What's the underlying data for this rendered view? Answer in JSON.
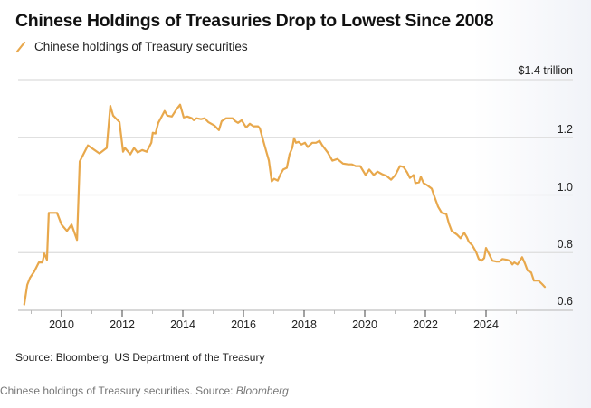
{
  "header": {
    "title": "Chinese Holdings of Treasuries Drop to Lowest Since 2008",
    "legend_label": "Chinese holdings of Treasury securities",
    "unit_label": "$1.4 trillion"
  },
  "footer": {
    "source": "Source: Bloomberg, US Department of the Treasury",
    "caption_prefix": "Chinese holdings of Treasury securities. Source: ",
    "caption_source": "Bloomberg"
  },
  "colors": {
    "line": "#e8a84c",
    "grid": "#dcdcdc",
    "axis": "#cccccc"
  },
  "chart_data": {
    "type": "line",
    "title": "Chinese Holdings of Treasuries Drop to Lowest Since 2008",
    "xlabel": "",
    "ylabel": "$ trillion",
    "ylim": [
      0.6,
      1.4
    ],
    "xlim": [
      2008.6,
      2026.9
    ],
    "yticks": [
      0.6,
      0.8,
      1.0,
      1.2,
      1.4
    ],
    "ytick_labels": [
      "0.6",
      "0.8",
      "1.0",
      "1.2",
      "$1.4 trillion"
    ],
    "xticks": [
      2010,
      2012,
      2014,
      2016,
      2018,
      2020,
      2022,
      2024
    ],
    "xtick_labels": [
      "2010",
      "2012",
      "2014",
      "2016",
      "2018",
      "2020",
      "2022",
      "2024"
    ],
    "minor_xticks": [
      2009,
      2011,
      2013,
      2015,
      2017,
      2019,
      2021,
      2023,
      2025
    ],
    "grid": true,
    "legend": "top-left",
    "series": [
      {
        "name": "Chinese holdings of Treasury securities",
        "x": [
          2008.77,
          2008.87,
          2008.96,
          2009.1,
          2009.25,
          2009.37,
          2009.43,
          2009.52,
          2009.58,
          2009.85,
          2010.0,
          2010.18,
          2010.33,
          2010.51,
          2010.6,
          2010.87,
          2011.25,
          2011.49,
          2011.61,
          2011.7,
          2011.91,
          2012.03,
          2012.09,
          2012.27,
          2012.39,
          2012.51,
          2012.66,
          2012.81,
          2012.96,
          2013.01,
          2013.1,
          2013.19,
          2013.4,
          2013.49,
          2013.64,
          2013.79,
          2013.91,
          2014.03,
          2014.15,
          2014.3,
          2014.36,
          2014.45,
          2014.6,
          2014.72,
          2014.84,
          2015.04,
          2015.19,
          2015.28,
          2015.43,
          2015.64,
          2015.73,
          2015.82,
          2015.94,
          2016.09,
          2016.21,
          2016.33,
          2016.48,
          2016.54,
          2016.72,
          2016.84,
          2016.93,
          2017.01,
          2017.13,
          2017.22,
          2017.31,
          2017.43,
          2017.52,
          2017.61,
          2017.67,
          2017.73,
          2017.82,
          2017.91,
          2018.03,
          2018.12,
          2018.27,
          2018.39,
          2018.51,
          2018.6,
          2018.78,
          2018.93,
          2019.1,
          2019.28,
          2019.46,
          2019.58,
          2019.7,
          2019.85,
          2020.03,
          2020.15,
          2020.3,
          2020.42,
          2020.57,
          2020.72,
          2020.87,
          2021.01,
          2021.16,
          2021.28,
          2021.4,
          2021.49,
          2021.61,
          2021.67,
          2021.79,
          2021.85,
          2021.94,
          2022.06,
          2022.21,
          2022.3,
          2022.42,
          2022.54,
          2022.69,
          2022.78,
          2022.87,
          2023.04,
          2023.16,
          2023.28,
          2023.37,
          2023.43,
          2023.55,
          2023.67,
          2023.76,
          2023.85,
          2023.94,
          2024.0,
          2024.12,
          2024.21,
          2024.33,
          2024.45,
          2024.54,
          2024.69,
          2024.78,
          2024.87,
          2024.93,
          2025.04,
          2025.19,
          2025.28,
          2025.37,
          2025.49,
          2025.58,
          2025.73,
          2025.85,
          2025.94
        ],
        "values": [
          0.62,
          0.688,
          0.713,
          0.734,
          0.766,
          0.766,
          0.797,
          0.775,
          0.938,
          0.938,
          0.897,
          0.875,
          0.897,
          0.844,
          1.116,
          1.172,
          1.144,
          1.163,
          1.309,
          1.275,
          1.253,
          1.15,
          1.163,
          1.141,
          1.163,
          1.147,
          1.156,
          1.15,
          1.181,
          1.216,
          1.213,
          1.25,
          1.291,
          1.275,
          1.272,
          1.297,
          1.313,
          1.269,
          1.272,
          1.266,
          1.259,
          1.266,
          1.263,
          1.266,
          1.253,
          1.241,
          1.225,
          1.256,
          1.266,
          1.266,
          1.256,
          1.25,
          1.259,
          1.234,
          1.247,
          1.238,
          1.238,
          1.231,
          1.163,
          1.119,
          1.047,
          1.056,
          1.05,
          1.072,
          1.088,
          1.094,
          1.141,
          1.163,
          1.197,
          1.181,
          1.184,
          1.175,
          1.181,
          1.166,
          1.181,
          1.181,
          1.188,
          1.172,
          1.147,
          1.119,
          1.125,
          1.109,
          1.106,
          1.106,
          1.1,
          1.1,
          1.069,
          1.088,
          1.069,
          1.081,
          1.072,
          1.066,
          1.053,
          1.069,
          1.1,
          1.097,
          1.078,
          1.059,
          1.069,
          1.041,
          1.044,
          1.063,
          1.041,
          1.034,
          1.022,
          0.994,
          0.959,
          0.938,
          0.934,
          0.9,
          0.875,
          0.863,
          0.85,
          0.869,
          0.853,
          0.838,
          0.825,
          0.803,
          0.778,
          0.772,
          0.781,
          0.816,
          0.791,
          0.772,
          0.769,
          0.769,
          0.778,
          0.775,
          0.772,
          0.759,
          0.766,
          0.759,
          0.784,
          0.763,
          0.738,
          0.731,
          0.703,
          0.703,
          0.691,
          0.681
        ]
      }
    ]
  }
}
